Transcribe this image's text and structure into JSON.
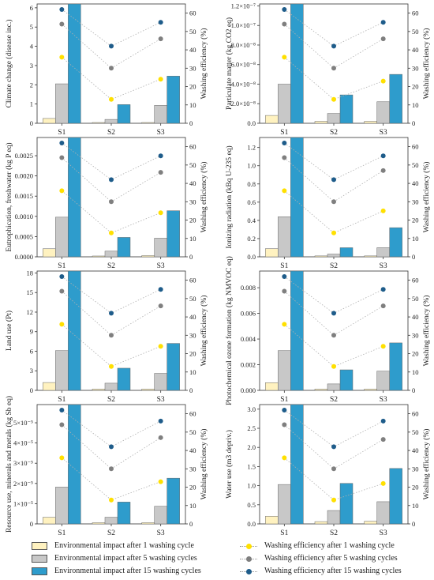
{
  "colors": {
    "cycle1_bar": "#FFF2C0",
    "cycle5_bar": "#C8C8C8",
    "cycle15_bar": "#2E9CCC",
    "eff1_dot": "#FFE000",
    "eff5_dot": "#7F7F7F",
    "eff15_dot": "#1E5C8A"
  },
  "legend": {
    "bar1": "Environmental impact after 1 washing cycle",
    "bar5": "Environmental impact after 5 washing cycles",
    "bar15": "Environmental impact after 15 washing cycles",
    "eff1": "Washing efficiency after 1 washing cycle",
    "eff5": "Washing efficiency after 5 washing cycles",
    "eff15": "Washing efficiency after 15 washing cycles"
  },
  "chart_data": [
    {
      "type": "bar",
      "categories": [
        "S1",
        "S2",
        "S3"
      ],
      "ylabel": "Climate change (disease inc.)",
      "ylabel2": "Washing efficiency (%)",
      "y_ticks": [
        "0",
        "1",
        "2",
        "3",
        "4",
        "5",
        "6"
      ],
      "ylim": [
        0,
        6.2
      ],
      "y2lim": [
        0,
        65
      ],
      "y2_ticks": [
        "0",
        "10",
        "20",
        "30",
        "40",
        "50",
        "60"
      ],
      "series": [
        {
          "name": "Environmental impact after 1 washing cycle",
          "values": [
            0.25,
            0.04,
            0.04
          ]
        },
        {
          "name": "Environmental impact after 5 washing cycles",
          "values": [
            2.05,
            0.2,
            0.93
          ]
        },
        {
          "name": "Environmental impact after 15 washing cycles",
          "values": [
            6.2,
            0.97,
            2.45
          ]
        }
      ],
      "efficiency": [
        {
          "name": "Washing efficiency after 1 washing cycle",
          "values": [
            36,
            13,
            24
          ]
        },
        {
          "name": "Washing efficiency after 5 washing cycles",
          "values": [
            54,
            30,
            46
          ]
        },
        {
          "name": "Washing efficiency after 15 washing cycles",
          "values": [
            62,
            42,
            55
          ]
        }
      ]
    },
    {
      "type": "bar",
      "categories": [
        "S1",
        "S2",
        "S3"
      ],
      "ylabel": "Particulate matter (kg CO2 eq)",
      "ylabel2": "Washing efficiency (%)",
      "y_ticks": [
        "0.0",
        "2.0×10⁻⁸",
        "4.0×10⁻⁸",
        "6.0×10⁻⁸",
        "8.0×10⁻⁸",
        "1.0×10⁻⁷",
        "1.2×10⁻⁷"
      ],
      "ylim": [
        0,
        1.22
      ],
      "y2lim": [
        0,
        65
      ],
      "y2_ticks": [
        "0",
        "10",
        "20",
        "30",
        "40",
        "50",
        "60"
      ],
      "series": [
        {
          "name": "Environmental impact after 1 washing cycle",
          "values": [
            0.08,
            0.02,
            0.02
          ]
        },
        {
          "name": "Environmental impact after 5 washing cycles",
          "values": [
            0.4,
            0.1,
            0.22
          ]
        },
        {
          "name": "Environmental impact after 15 washing cycles",
          "values": [
            1.22,
            0.29,
            0.5
          ]
        }
      ],
      "efficiency": [
        {
          "name": "Washing efficiency after 1 washing cycle",
          "values": [
            36,
            13,
            23
          ]
        },
        {
          "name": "Washing efficiency after 5 washing cycles",
          "values": [
            54,
            30,
            46
          ]
        },
        {
          "name": "Washing efficiency after 15 washing cycles",
          "values": [
            62,
            42,
            55
          ]
        }
      ]
    },
    {
      "type": "bar",
      "categories": [
        "S1",
        "S2",
        "S3"
      ],
      "ylabel": "Eutrophication, freshwater (kg P eq)",
      "ylabel2": "Washing efficiency (%)",
      "y_ticks": [
        "0.0000",
        "0.0005",
        "0.0010",
        "0.0015",
        "0.0020",
        "0.0025"
      ],
      "ylim": [
        0,
        0.00295
      ],
      "y2lim": [
        0,
        65
      ],
      "y2_ticks": [
        "0",
        "10",
        "20",
        "30",
        "40",
        "50",
        "60"
      ],
      "series": [
        {
          "name": "Environmental impact after 1 washing cycle",
          "values": [
            0.0002,
            2e-05,
            3e-05
          ]
        },
        {
          "name": "Environmental impact after 5 washing cycles",
          "values": [
            0.00098,
            0.00014,
            0.00046
          ]
        },
        {
          "name": "Environmental impact after 15 washing cycles",
          "values": [
            0.00295,
            0.00048,
            0.00114
          ]
        }
      ],
      "efficiency": [
        {
          "name": "Washing efficiency after 1 washing cycle",
          "values": [
            36,
            13,
            24
          ]
        },
        {
          "name": "Washing efficiency after 5 washing cycles",
          "values": [
            54,
            30,
            46
          ]
        },
        {
          "name": "Washing efficiency after 15 washing cycles",
          "values": [
            62,
            42,
            55
          ]
        }
      ]
    },
    {
      "type": "bar",
      "categories": [
        "S1",
        "S2",
        "S3"
      ],
      "ylabel": "Ionizing radiation (kBq U-235 eq)",
      "ylabel2": "Washing efficiency (%)",
      "y_ticks": [
        "0.0",
        "0.2",
        "0.4",
        "0.6",
        "0.8",
        "1.0",
        "1.2"
      ],
      "ylim": [
        0,
        1.31
      ],
      "y2lim": [
        0,
        65
      ],
      "y2_ticks": [
        "0",
        "10",
        "20",
        "30",
        "40",
        "50",
        "60"
      ],
      "series": [
        {
          "name": "Environmental impact after 1 washing cycle",
          "values": [
            0.09,
            0.01,
            0.01
          ]
        },
        {
          "name": "Environmental impact after 5 washing cycles",
          "values": [
            0.44,
            0.03,
            0.1
          ]
        },
        {
          "name": "Environmental impact after 15 washing cycles",
          "values": [
            1.31,
            0.1,
            0.32
          ]
        }
      ],
      "efficiency": [
        {
          "name": "Washing efficiency after 1 washing cycle",
          "values": [
            36,
            13,
            25
          ]
        },
        {
          "name": "Washing efficiency after 5 washing cycles",
          "values": [
            54,
            30,
            47
          ]
        },
        {
          "name": "Washing efficiency after 15 washing cycles",
          "values": [
            62,
            42,
            55
          ]
        }
      ]
    },
    {
      "type": "bar",
      "categories": [
        "S1",
        "S2",
        "S3"
      ],
      "ylabel": "Land use (Pt)",
      "ylabel2": "Washing efficiency (%)",
      "y_ticks": [
        "0",
        "3",
        "6",
        "9",
        "12",
        "15",
        "18"
      ],
      "ylim": [
        0,
        18.3
      ],
      "y2lim": [
        0,
        65
      ],
      "y2_ticks": [
        "0",
        "10",
        "20",
        "30",
        "40",
        "50",
        "60"
      ],
      "series": [
        {
          "name": "Environmental impact after 1 washing cycle",
          "values": [
            1.2,
            0.2,
            0.2
          ]
        },
        {
          "name": "Environmental impact after 5 washing cycles",
          "values": [
            6.1,
            1.1,
            2.6
          ]
        },
        {
          "name": "Environmental impact after 15 washing cycles",
          "values": [
            18.3,
            3.4,
            7.2
          ]
        }
      ],
      "efficiency": [
        {
          "name": "Washing efficiency after 1 washing cycle",
          "values": [
            36,
            13,
            24
          ]
        },
        {
          "name": "Washing efficiency after 5 washing cycles",
          "values": [
            54,
            30,
            46
          ]
        },
        {
          "name": "Washing efficiency after 15 washing cycles",
          "values": [
            62,
            42,
            55
          ]
        }
      ]
    },
    {
      "type": "bar",
      "categories": [
        "S1",
        "S2",
        "S3"
      ],
      "ylabel": "Photochemical ozone formation (kg NMVOC eq)",
      "ylabel2": "Washing efficiency (%)",
      "y_ticks": [
        "0.000",
        "0.002",
        "0.004",
        "0.006",
        "0.008"
      ],
      "ylim": [
        0,
        0.0093
      ],
      "y2lim": [
        0,
        65
      ],
      "y2_ticks": [
        "0",
        "10",
        "20",
        "30",
        "40",
        "50",
        "60"
      ],
      "series": [
        {
          "name": "Environmental impact after 1 washing cycle",
          "values": [
            0.0006,
            0.0001,
            0.0001
          ]
        },
        {
          "name": "Environmental impact after 5 washing cycles",
          "values": [
            0.0031,
            0.0005,
            0.0015
          ]
        },
        {
          "name": "Environmental impact after 15 washing cycles",
          "values": [
            0.0093,
            0.0016,
            0.0037
          ]
        }
      ],
      "efficiency": [
        {
          "name": "Washing efficiency after 1 washing cycle",
          "values": [
            36,
            13,
            24
          ]
        },
        {
          "name": "Washing efficiency after 5 washing cycles",
          "values": [
            54,
            30,
            46
          ]
        },
        {
          "name": "Washing efficiency after 15 washing cycles",
          "values": [
            62,
            42,
            55
          ]
        }
      ]
    },
    {
      "type": "bar",
      "categories": [
        "S1",
        "S2",
        "S3"
      ],
      "ylabel": "Resource use, minerals and metals (kg Sb eq)",
      "ylabel2": "Washing efficiency (%)",
      "y_ticks": [
        "0",
        "1×10⁻⁵",
        "2×10⁻⁵",
        "3×10⁻⁵",
        "4×10⁻⁵",
        "5×10⁻⁵"
      ],
      "ylim": [
        0,
        5.9
      ],
      "y2lim": [
        0,
        65
      ],
      "y2_ticks": [
        "0",
        "10",
        "20",
        "30",
        "40",
        "50",
        "60"
      ],
      "series": [
        {
          "name": "Environmental impact after 1 washing cycle",
          "values": [
            0.33,
            0.06,
            0.06
          ]
        },
        {
          "name": "Environmental impact after 5 washing cycles",
          "values": [
            1.82,
            0.33,
            0.87
          ]
        },
        {
          "name": "Environmental impact after 15 washing cycles",
          "values": [
            5.9,
            1.08,
            2.26
          ]
        }
      ],
      "efficiency": [
        {
          "name": "Washing efficiency after 1 washing cycle",
          "values": [
            36,
            13,
            23
          ]
        },
        {
          "name": "Washing efficiency after 5 washing cycles",
          "values": [
            54,
            30,
            47
          ]
        },
        {
          "name": "Washing efficiency after 15 washing cycles",
          "values": [
            62,
            42,
            56
          ]
        }
      ]
    },
    {
      "type": "bar",
      "categories": [
        "S1",
        "S2",
        "S3"
      ],
      "ylabel": "Water use (m3 depriv.)",
      "ylabel2": "Washing efficiency (%)",
      "y_ticks": [
        "0.0",
        "0.5",
        "1.0",
        "1.5",
        "2.0",
        "2.5",
        "3.0"
      ],
      "ylim": [
        0,
        3.12
      ],
      "y2lim": [
        0,
        65
      ],
      "y2_ticks": [
        "0",
        "10",
        "20",
        "30",
        "40",
        "50",
        "60"
      ],
      "series": [
        {
          "name": "Environmental impact after 1 washing cycle",
          "values": [
            0.2,
            0.06,
            0.07
          ]
        },
        {
          "name": "Environmental impact after 5 washing cycles",
          "values": [
            1.03,
            0.35,
            0.58
          ]
        },
        {
          "name": "Environmental impact after 15 washing cycles",
          "values": [
            3.12,
            1.06,
            1.45
          ]
        }
      ],
      "efficiency": [
        {
          "name": "Washing efficiency after 1 washing cycle",
          "values": [
            36,
            13,
            22
          ]
        },
        {
          "name": "Washing efficiency after 5 washing cycles",
          "values": [
            54,
            30,
            46
          ]
        },
        {
          "name": "Washing efficiency after 15 washing cycles",
          "values": [
            62,
            42,
            56
          ]
        }
      ]
    }
  ]
}
